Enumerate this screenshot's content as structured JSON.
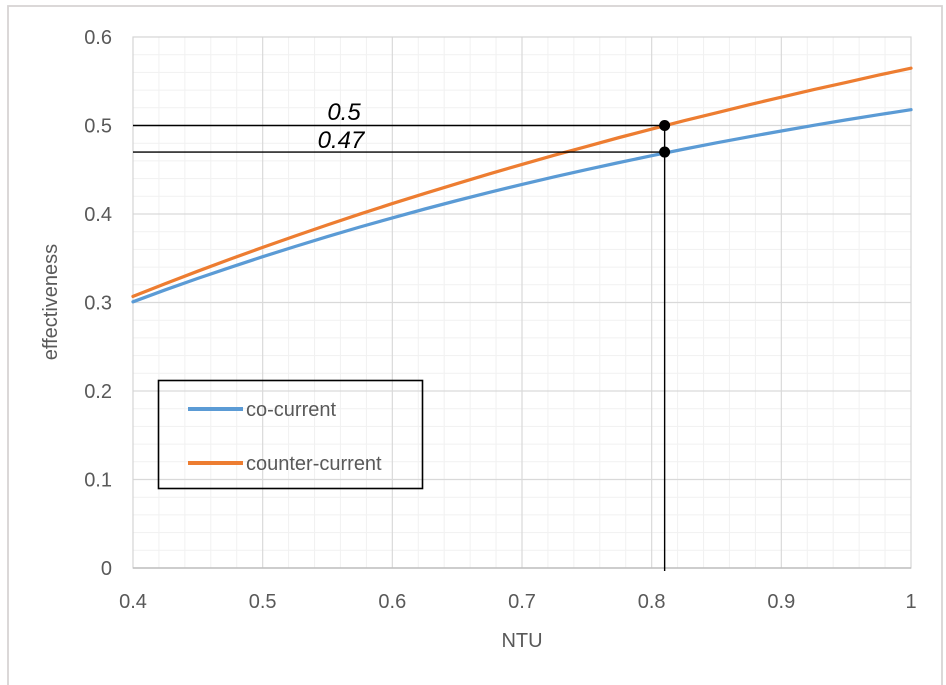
{
  "frame": {
    "border_color": "#d7d4d4"
  },
  "chart_data": {
    "type": "line",
    "title": "",
    "xlabel": "NTU",
    "ylabel": "effectiveness",
    "xlim": [
      0.4,
      1
    ],
    "ylim": [
      0,
      0.6
    ],
    "x_ticks": {
      "values": [
        0.4,
        0.5,
        0.6,
        0.7,
        0.8,
        0.9,
        1
      ],
      "labels": [
        "0.4",
        "0.5",
        "0.6",
        "0.7",
        "0.8",
        "0.9",
        "1"
      ]
    },
    "y_ticks": {
      "values": [
        0,
        0.1,
        0.2,
        0.3,
        0.4,
        0.5,
        0.6
      ],
      "labels": [
        "0",
        "0.1",
        "0.2",
        "0.3",
        "0.4",
        "0.5",
        "0.6"
      ]
    },
    "minor_unit": {
      "x": 0.02,
      "y": 0.02
    },
    "grid": {
      "major_color": "#d9d9d9",
      "minor_color": "#f1f1f1",
      "border_color": "#d4d4d4",
      "axis_color": "#bfbfbf"
    },
    "text_color": "#595959",
    "x": [
      0.4,
      0.425,
      0.45,
      0.475,
      0.5,
      0.525,
      0.55,
      0.575,
      0.6,
      0.625,
      0.65,
      0.675,
      0.7,
      0.725,
      0.75,
      0.775,
      0.8,
      0.825,
      0.85,
      0.875,
      0.9,
      0.925,
      0.95,
      0.975,
      1
    ],
    "series": [
      {
        "name": "co-current",
        "color": "#5b9bd5",
        "values": [
          0.3008,
          0.3143,
          0.3272,
          0.3397,
          0.3518,
          0.3633,
          0.3745,
          0.3853,
          0.3956,
          0.4056,
          0.4152,
          0.4245,
          0.4334,
          0.442,
          0.4502,
          0.4582,
          0.4659,
          0.4733,
          0.4804,
          0.4872,
          0.4938,
          0.5002,
          0.5063,
          0.5122,
          0.5179
        ]
      },
      {
        "name": "counter-current",
        "color": "#ed7d31",
        "values": [
          0.3069,
          0.3213,
          0.3354,
          0.349,
          0.3623,
          0.3751,
          0.3877,
          0.3999,
          0.4117,
          0.4233,
          0.4344,
          0.4454,
          0.456,
          0.4664,
          0.4764,
          0.4864,
          0.4959,
          0.5054,
          0.5144,
          0.5234,
          0.532,
          0.5406,
          0.5487,
          0.557,
          0.5647
        ]
      }
    ],
    "legend": {
      "position": "inside-left",
      "border_color": "#000000",
      "entries": [
        "co-current",
        "counter-current"
      ]
    },
    "annotations": {
      "color": "#000000",
      "guide_x": 0.81,
      "points": [
        {
          "x": 0.81,
          "y": 0.5,
          "label": "0.5",
          "series": "counter-current"
        },
        {
          "x": 0.81,
          "y": 0.47,
          "label": "0.47",
          "series": "co-current"
        }
      ]
    }
  }
}
